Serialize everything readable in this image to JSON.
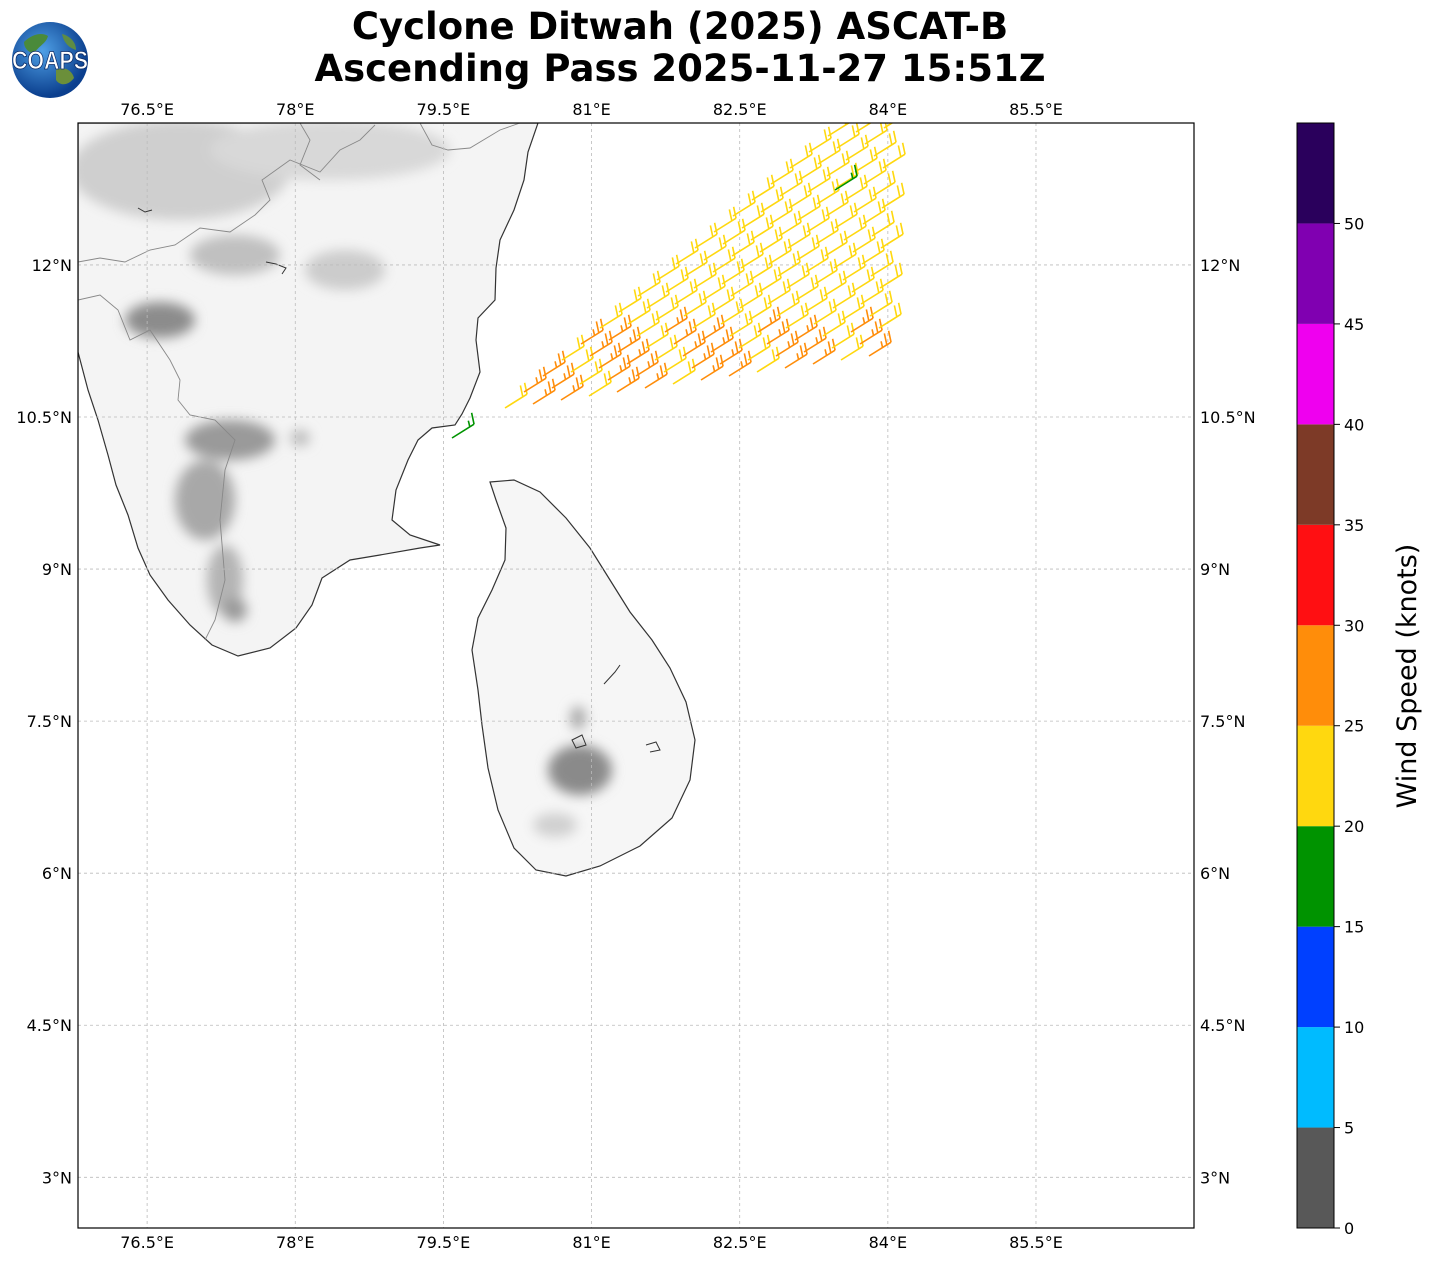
{
  "title": {
    "line1": "Cyclone Ditwah (2025) ASCAT-B",
    "line2": "Ascending Pass 2025-11-27 15:51Z"
  },
  "logo": {
    "text": "COAPS",
    "icon": "globe-icon"
  },
  "map": {
    "lon_range": [
      75.8,
      87.1
    ],
    "lat_range": [
      2.5,
      13.4
    ],
    "lon_ticks": [
      "76.5°E",
      "78°E",
      "79.5°E",
      "81°E",
      "82.5°E",
      "84°E",
      "85.5°E"
    ],
    "lon_values": [
      76.5,
      78,
      79.5,
      81,
      82.5,
      84,
      85.5
    ],
    "lat_ticks": [
      "12°N",
      "10.5°N",
      "9°N",
      "7.5°N",
      "6°N",
      "4.5°N",
      "3°N"
    ],
    "lat_values": [
      12,
      10.5,
      9,
      7.5,
      6,
      4.5,
      3
    ],
    "grid": true
  },
  "colorbar": {
    "label": "Wind Speed (knots)",
    "ticks": [
      "0",
      "5",
      "10",
      "15",
      "20",
      "25",
      "30",
      "35",
      "40",
      "45",
      "50"
    ],
    "bins": [
      0,
      5,
      10,
      15,
      20,
      25,
      30,
      35,
      40,
      45,
      50,
      55
    ],
    "colors": [
      "#585858",
      "#00bbff",
      "#0040ff",
      "#009300",
      "#ffd80f",
      "#ff8d0a",
      "#ff0f12",
      "#7d3a27",
      "#ef00ef",
      "#8000b1",
      "#2a005c"
    ]
  }
}
